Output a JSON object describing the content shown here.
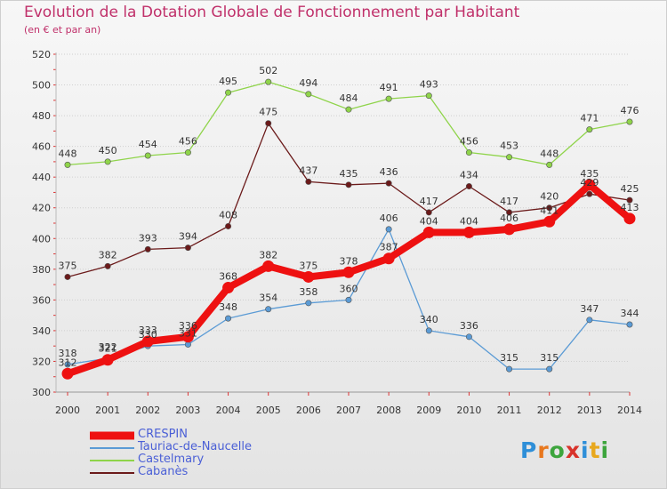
{
  "header": {
    "title": "Evolution de la Dotation Globale de Fonctionnement par Habitant",
    "subtitle": "(en € et par an)"
  },
  "logo": {
    "text": "Proxiti",
    "letters": [
      {
        "ch": "P",
        "color": "#2f8fd8"
      },
      {
        "ch": "r",
        "color": "#e8781e"
      },
      {
        "ch": "o",
        "color": "#3da53d"
      },
      {
        "ch": "x",
        "color": "#d8332b"
      },
      {
        "ch": "i",
        "color": "#2f8fd8"
      },
      {
        "ch": "t",
        "color": "#e8a81e"
      },
      {
        "ch": "i",
        "color": "#3da53d"
      }
    ]
  },
  "chart_data": {
    "type": "line",
    "title": "Evolution de la Dotation Globale de Fonctionnement par Habitant",
    "subtitle": "(en € et par an)",
    "xlabel": "",
    "ylabel": "",
    "x": [
      "2000",
      "2001",
      "2002",
      "2003",
      "2004",
      "2005",
      "2006",
      "2007",
      "2008",
      "2009",
      "2010",
      "2011",
      "2012",
      "2013",
      "2014"
    ],
    "y_ticks": [
      "300",
      "320",
      "340",
      "360",
      "380",
      "400",
      "420",
      "440",
      "460",
      "480",
      "500",
      "520"
    ],
    "ylim": [
      300,
      520
    ],
    "grid": "horizontal",
    "legend": "bottom-left",
    "series": [
      {
        "name": "CRESPIN",
        "color": "#ee1111",
        "values": [
          312,
          321,
          333,
          336,
          368,
          382,
          375,
          378,
          387,
          404,
          404,
          406,
          411,
          435,
          413
        ]
      },
      {
        "name": "Tauriac-de-Naucelle",
        "color": "#5b9bd5",
        "values": [
          318,
          322,
          330,
          331,
          348,
          354,
          358,
          360,
          406,
          340,
          336,
          315,
          315,
          347,
          344
        ]
      },
      {
        "name": "Castelmary",
        "color": "#8fd44a",
        "values": [
          448,
          450,
          454,
          456,
          495,
          502,
          494,
          484,
          491,
          493,
          456,
          453,
          448,
          471,
          476
        ]
      },
      {
        "name": "Cabanès",
        "color": "#6b1a1a",
        "values": [
          375,
          382,
          393,
          394,
          408,
          475,
          437,
          435,
          436,
          417,
          434,
          417,
          420,
          429,
          425
        ]
      }
    ]
  }
}
